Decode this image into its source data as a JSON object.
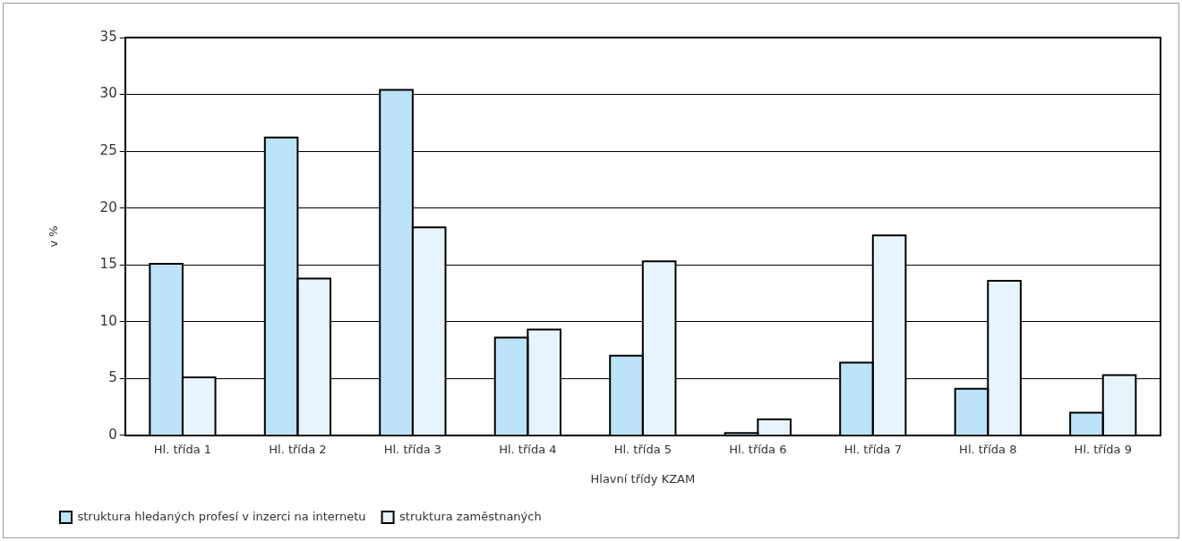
{
  "chart_data": {
    "type": "bar",
    "xlabel": "Hlavní třídy KZAM",
    "ylabel": "v %",
    "categories": [
      "Hl. třída 1",
      "Hl. třída 2",
      "Hl. třída 3",
      "Hl. třída 4",
      "Hl. třída 5",
      "Hl. třída 6",
      "Hl. třída 7",
      "Hl. třída 8",
      "Hl. třída 9"
    ],
    "series": [
      {
        "name": "struktura hledaných profesí v inzerci na internetu",
        "color": "#bde3f8",
        "values": [
          15.1,
          26.2,
          30.4,
          8.6,
          7.0,
          0.2,
          6.4,
          4.1,
          2.0
        ]
      },
      {
        "name": "struktura zaměstnaných",
        "color": "#e8f4fc",
        "values": [
          5.1,
          13.8,
          18.3,
          9.3,
          15.3,
          1.4,
          17.6,
          13.6,
          5.3
        ]
      }
    ],
    "ylim": [
      0,
      35
    ],
    "yticks": [
      0,
      5,
      10,
      15,
      20,
      25,
      30,
      35
    ],
    "grid": "y",
    "legend": "bottom left"
  }
}
